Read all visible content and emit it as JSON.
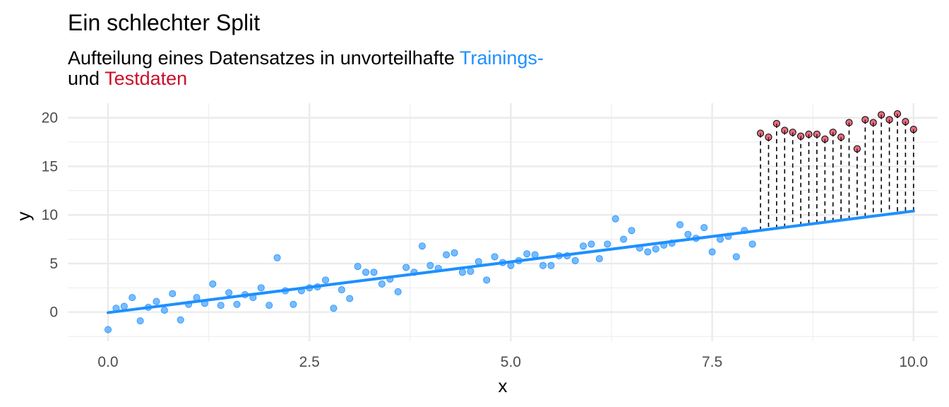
{
  "chart_data": {
    "type": "scatter",
    "title": "Ein schlechter Split",
    "subtitle": {
      "line1_prefix": "Aufteilung eines Datensatzes in unvorteilhafte ",
      "train_word": "Trainings-",
      "line2_prefix": "und ",
      "test_word": "Testdaten"
    },
    "xlabel": "x",
    "ylabel": "y",
    "xlim": [
      -0.5,
      10.3
    ],
    "ylim": [
      -3.0,
      21.5
    ],
    "x_ticks": [
      0,
      2.5,
      5,
      7.5,
      10
    ],
    "x_tick_labels": [
      "0.0",
      "2.5",
      "5.0",
      "7.5",
      "10.0"
    ],
    "y_ticks": [
      0,
      5,
      10,
      15,
      20
    ],
    "y_tick_labels": [
      "0",
      "5",
      "10",
      "15",
      "20"
    ],
    "grid": true,
    "colors": {
      "train": "#1E90FF",
      "test": "#C8102E",
      "grid": "#EBEBEB",
      "residual": "#000000"
    },
    "fit_line": {
      "x": [
        0,
        10
      ],
      "y": [
        -0.05,
        10.4
      ]
    },
    "series": [
      {
        "name": "Trainings-",
        "points": [
          [
            0.0,
            -1.8
          ],
          [
            0.1,
            0.4
          ],
          [
            0.2,
            0.6
          ],
          [
            0.3,
            1.5
          ],
          [
            0.4,
            -0.9
          ],
          [
            0.5,
            0.5
          ],
          [
            0.6,
            1.1
          ],
          [
            0.7,
            0.2
          ],
          [
            0.8,
            1.9
          ],
          [
            0.9,
            -0.8
          ],
          [
            1.0,
            0.8
          ],
          [
            1.1,
            1.5
          ],
          [
            1.2,
            0.9
          ],
          [
            1.3,
            2.9
          ],
          [
            1.4,
            0.7
          ],
          [
            1.5,
            2.0
          ],
          [
            1.6,
            0.8
          ],
          [
            1.7,
            1.8
          ],
          [
            1.8,
            1.5
          ],
          [
            1.9,
            2.5
          ],
          [
            2.0,
            0.7
          ],
          [
            2.1,
            5.6
          ],
          [
            2.2,
            2.2
          ],
          [
            2.3,
            0.8
          ],
          [
            2.4,
            2.2
          ],
          [
            2.5,
            2.5
          ],
          [
            2.6,
            2.6
          ],
          [
            2.7,
            3.3
          ],
          [
            2.8,
            0.4
          ],
          [
            2.9,
            2.3
          ],
          [
            3.0,
            1.4
          ],
          [
            3.1,
            4.7
          ],
          [
            3.2,
            4.1
          ],
          [
            3.3,
            4.1
          ],
          [
            3.4,
            2.9
          ],
          [
            3.5,
            3.4
          ],
          [
            3.6,
            2.1
          ],
          [
            3.7,
            4.6
          ],
          [
            3.8,
            4.1
          ],
          [
            3.9,
            6.8
          ],
          [
            4.0,
            4.8
          ],
          [
            4.1,
            4.5
          ],
          [
            4.2,
            5.9
          ],
          [
            4.3,
            6.1
          ],
          [
            4.4,
            4.1
          ],
          [
            4.5,
            4.2
          ],
          [
            4.6,
            5.2
          ],
          [
            4.7,
            3.3
          ],
          [
            4.8,
            5.7
          ],
          [
            4.9,
            5.1
          ],
          [
            5.0,
            4.8
          ],
          [
            5.1,
            5.3
          ],
          [
            5.2,
            6.0
          ],
          [
            5.3,
            5.9
          ],
          [
            5.4,
            4.8
          ],
          [
            5.5,
            4.8
          ],
          [
            5.6,
            5.8
          ],
          [
            5.7,
            5.8
          ],
          [
            5.8,
            5.3
          ],
          [
            5.9,
            6.8
          ],
          [
            6.0,
            7.0
          ],
          [
            6.1,
            5.5
          ],
          [
            6.2,
            7.0
          ],
          [
            6.3,
            9.6
          ],
          [
            6.4,
            7.5
          ],
          [
            6.5,
            8.4
          ],
          [
            6.6,
            6.6
          ],
          [
            6.7,
            6.2
          ],
          [
            6.8,
            6.5
          ],
          [
            6.9,
            6.9
          ],
          [
            7.0,
            7.1
          ],
          [
            7.1,
            9.0
          ],
          [
            7.2,
            8.0
          ],
          [
            7.3,
            7.6
          ],
          [
            7.4,
            8.7
          ],
          [
            7.5,
            6.2
          ],
          [
            7.6,
            7.5
          ],
          [
            7.7,
            7.8
          ],
          [
            7.8,
            5.7
          ],
          [
            7.9,
            8.4
          ],
          [
            8.0,
            7.0
          ]
        ]
      },
      {
        "name": "Testdaten",
        "points": [
          [
            8.1,
            18.4
          ],
          [
            8.2,
            18.0
          ],
          [
            8.3,
            19.4
          ],
          [
            8.4,
            18.7
          ],
          [
            8.5,
            18.5
          ],
          [
            8.6,
            18.1
          ],
          [
            8.7,
            18.3
          ],
          [
            8.8,
            18.3
          ],
          [
            8.9,
            17.8
          ],
          [
            9.0,
            18.5
          ],
          [
            9.1,
            18.0
          ],
          [
            9.2,
            19.5
          ],
          [
            9.3,
            16.8
          ],
          [
            9.4,
            19.8
          ],
          [
            9.5,
            19.5
          ],
          [
            9.6,
            20.3
          ],
          [
            9.7,
            19.8
          ],
          [
            9.8,
            20.4
          ],
          [
            9.9,
            19.6
          ],
          [
            10.0,
            18.8
          ]
        ]
      }
    ]
  }
}
